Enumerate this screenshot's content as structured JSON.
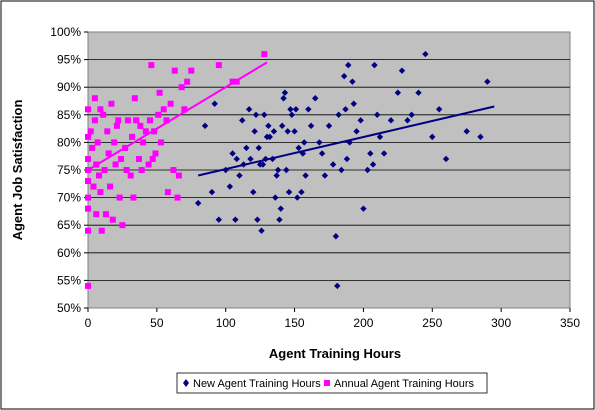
{
  "chart_data": {
    "type": "scatter",
    "title": "",
    "xlabel": "Agent Training Hours",
    "ylabel": "Agent Job Satisfaction",
    "xlim": [
      0,
      350
    ],
    "ylim": [
      50,
      100
    ],
    "x_ticks": [
      0,
      50,
      100,
      150,
      200,
      250,
      300,
      350
    ],
    "y_ticks": [
      50,
      55,
      60,
      65,
      70,
      75,
      80,
      85,
      90,
      95,
      100
    ],
    "y_tick_suffix": "%",
    "grid": "horizontal",
    "legend_position": "bottom-right",
    "background": "#c0c0c0",
    "series": [
      {
        "name": "New Agent Training Hours",
        "marker": "diamond",
        "color": "#000080",
        "points": [
          [
            80,
            69
          ],
          [
            85,
            83
          ],
          [
            90,
            71
          ],
          [
            92,
            87
          ],
          [
            95,
            66
          ],
          [
            100,
            75
          ],
          [
            103,
            72
          ],
          [
            105,
            78
          ],
          [
            107,
            66
          ],
          [
            108,
            77
          ],
          [
            110,
            74
          ],
          [
            112,
            84
          ],
          [
            113,
            76
          ],
          [
            115,
            79
          ],
          [
            117,
            86
          ],
          [
            118,
            77
          ],
          [
            120,
            71
          ],
          [
            121,
            82
          ],
          [
            122,
            85
          ],
          [
            123,
            66
          ],
          [
            124,
            79
          ],
          [
            125,
            76
          ],
          [
            126,
            64
          ],
          [
            127,
            76
          ],
          [
            128,
            85
          ],
          [
            129,
            77
          ],
          [
            130,
            81
          ],
          [
            131,
            83
          ],
          [
            132,
            81
          ],
          [
            134,
            77
          ],
          [
            135,
            82
          ],
          [
            136,
            70
          ],
          [
            137,
            74
          ],
          [
            138,
            75
          ],
          [
            139,
            66
          ],
          [
            140,
            68
          ],
          [
            141,
            83
          ],
          [
            142,
            88
          ],
          [
            143,
            89
          ],
          [
            144,
            75
          ],
          [
            145,
            82
          ],
          [
            146,
            71
          ],
          [
            147,
            86
          ],
          [
            148,
            85
          ],
          [
            150,
            82
          ],
          [
            151,
            86
          ],
          [
            152,
            70
          ],
          [
            153,
            79
          ],
          [
            155,
            71
          ],
          [
            156,
            78
          ],
          [
            157,
            80
          ],
          [
            158,
            74
          ],
          [
            160,
            86
          ],
          [
            162,
            83
          ],
          [
            165,
            88
          ],
          [
            168,
            80
          ],
          [
            170,
            78
          ],
          [
            172,
            74
          ],
          [
            175,
            83
          ],
          [
            178,
            76
          ],
          [
            180,
            63
          ],
          [
            181,
            54
          ],
          [
            182,
            85
          ],
          [
            184,
            75
          ],
          [
            186,
            92
          ],
          [
            187,
            86
          ],
          [
            188,
            77
          ],
          [
            189,
            94
          ],
          [
            190,
            80
          ],
          [
            192,
            91
          ],
          [
            193,
            87
          ],
          [
            195,
            82
          ],
          [
            198,
            84
          ],
          [
            200,
            68
          ],
          [
            203,
            75
          ],
          [
            205,
            78
          ],
          [
            207,
            76
          ],
          [
            208,
            94
          ],
          [
            210,
            85
          ],
          [
            212,
            81
          ],
          [
            215,
            78
          ],
          [
            220,
            84
          ],
          [
            225,
            89
          ],
          [
            228,
            93
          ],
          [
            232,
            84
          ],
          [
            235,
            85
          ],
          [
            240,
            89
          ],
          [
            245,
            96
          ],
          [
            250,
            81
          ],
          [
            255,
            86
          ],
          [
            260,
            77
          ],
          [
            275,
            82
          ],
          [
            285,
            81
          ],
          [
            290,
            91
          ]
        ],
        "trendline": [
          [
            80,
            74
          ],
          [
            295,
            86.5
          ]
        ]
      },
      {
        "name": "Annual Agent Training Hours",
        "marker": "square",
        "color": "#ff00ff",
        "points": [
          [
            0,
            86
          ],
          [
            0,
            81
          ],
          [
            0,
            77
          ],
          [
            0,
            75
          ],
          [
            0,
            73
          ],
          [
            0,
            70
          ],
          [
            0,
            68
          ],
          [
            0,
            64
          ],
          [
            0,
            54
          ],
          [
            2,
            82
          ],
          [
            3,
            79
          ],
          [
            4,
            72
          ],
          [
            5,
            88
          ],
          [
            5,
            84
          ],
          [
            6,
            76
          ],
          [
            6,
            67
          ],
          [
            7,
            80
          ],
          [
            8,
            74
          ],
          [
            9,
            86
          ],
          [
            9,
            71
          ],
          [
            10,
            64
          ],
          [
            11,
            85
          ],
          [
            12,
            75
          ],
          [
            13,
            67
          ],
          [
            14,
            82
          ],
          [
            15,
            78
          ],
          [
            16,
            72
          ],
          [
            17,
            87
          ],
          [
            18,
            66
          ],
          [
            19,
            80
          ],
          [
            20,
            76
          ],
          [
            21,
            83
          ],
          [
            22,
            84
          ],
          [
            23,
            70
          ],
          [
            24,
            77
          ],
          [
            25,
            65
          ],
          [
            27,
            79
          ],
          [
            28,
            75
          ],
          [
            29,
            84
          ],
          [
            31,
            74
          ],
          [
            32,
            81
          ],
          [
            33,
            70
          ],
          [
            34,
            88
          ],
          [
            35,
            84
          ],
          [
            37,
            77
          ],
          [
            38,
            83
          ],
          [
            39,
            75
          ],
          [
            40,
            80
          ],
          [
            42,
            82
          ],
          [
            44,
            76
          ],
          [
            45,
            84
          ],
          [
            46,
            94
          ],
          [
            47,
            77
          ],
          [
            48,
            82
          ],
          [
            49,
            78
          ],
          [
            51,
            85
          ],
          [
            52,
            89
          ],
          [
            53,
            80
          ],
          [
            55,
            86
          ],
          [
            57,
            84
          ],
          [
            58,
            71
          ],
          [
            60,
            87
          ],
          [
            62,
            75
          ],
          [
            63,
            93
          ],
          [
            65,
            70
          ],
          [
            66,
            74
          ],
          [
            68,
            90
          ],
          [
            70,
            86
          ],
          [
            72,
            91
          ],
          [
            75,
            93
          ],
          [
            95,
            94
          ],
          [
            105,
            91
          ],
          [
            108,
            91
          ],
          [
            128,
            96
          ]
        ],
        "trendline": [
          [
            0,
            75
          ],
          [
            130,
            94.5
          ]
        ]
      }
    ]
  }
}
